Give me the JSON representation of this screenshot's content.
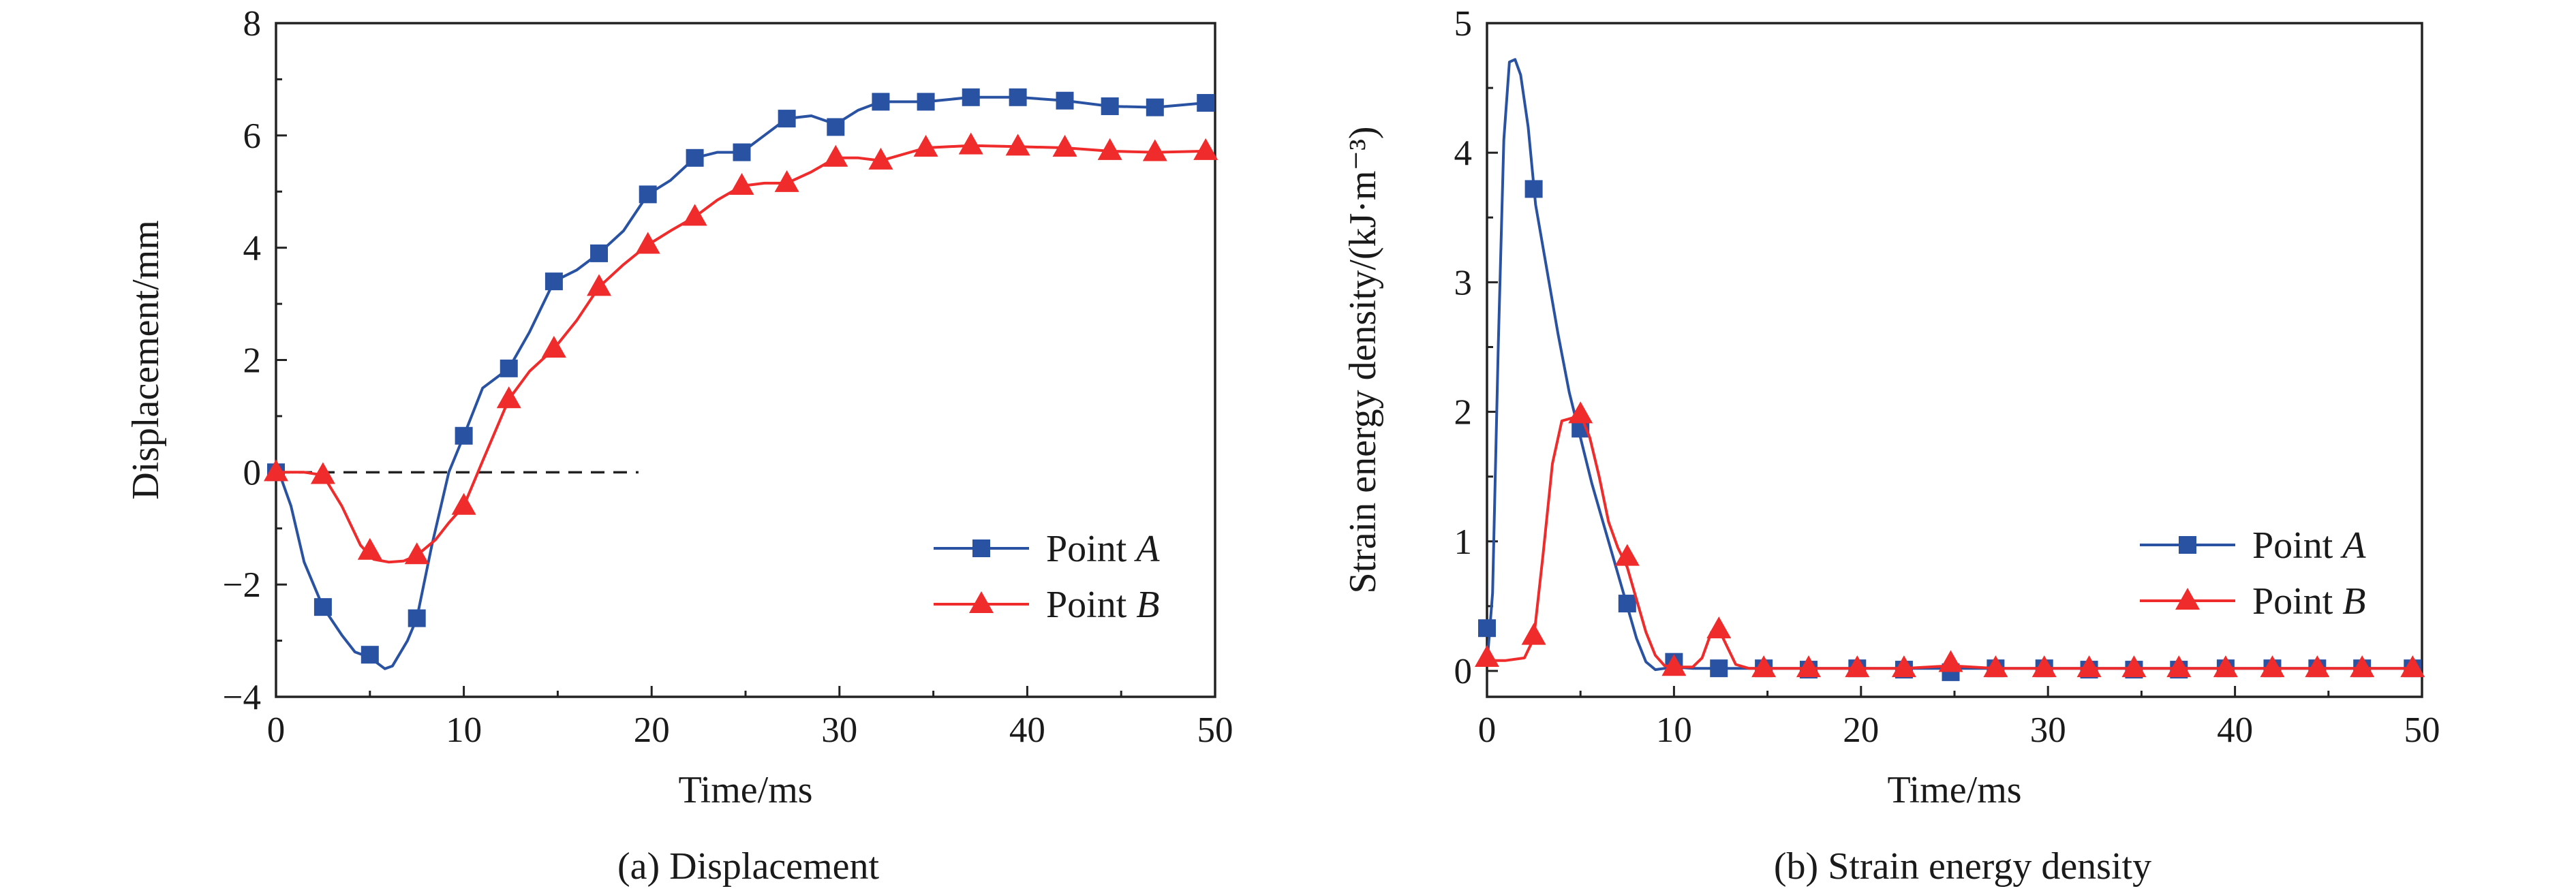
{
  "colors": {
    "point_a": "#2952a3",
    "point_b": "#ef2b2b",
    "axis": "#222222",
    "ref_line": "#222222"
  },
  "chart_data": [
    {
      "type": "line",
      "caption": "(a) Displacement",
      "xlabel": "Time/ms",
      "ylabel": "Displacement/mm",
      "xlim": [
        0,
        50
      ],
      "ylim": [
        -4,
        8
      ],
      "xticks": [
        0,
        10,
        20,
        30,
        40,
        50
      ],
      "yticks": [
        -4,
        -2,
        0,
        2,
        4,
        6,
        8
      ],
      "ytick_labels": [
        "−4",
        "−2",
        "0",
        "2",
        "4",
        "6",
        "8"
      ],
      "grid": false,
      "legend_position": "right-middle",
      "reference_line": {
        "y": 0,
        "x_from": 0,
        "x_to": 19.3,
        "style": "dashed"
      },
      "series": [
        {
          "name": "Point A",
          "name_prefix": "Point ",
          "name_italic": "A",
          "color": "#2952a3",
          "marker": "square",
          "x": [
            0,
            0.8,
            1.5,
            2.5,
            3.5,
            4.2,
            5,
            5.8,
            6.2,
            7,
            7.5,
            8.3,
            9.2,
            10,
            11,
            12.4,
            13.5,
            14.8,
            16,
            17.2,
            18.5,
            19.8,
            21,
            22.3,
            23.5,
            24.8,
            26,
            27.2,
            28.5,
            29.8,
            31,
            32.2,
            34.6,
            37,
            39.5,
            42,
            44.4,
            46.8,
            49.5
          ],
          "y": [
            0.15,
            -0.6,
            -1.6,
            -2.4,
            -2.9,
            -3.2,
            -3.3,
            -3.5,
            -3.45,
            -3.0,
            -2.6,
            -1.3,
            0.0,
            0.65,
            1.5,
            1.85,
            2.5,
            3.4,
            3.6,
            3.9,
            4.3,
            4.95,
            5.2,
            5.6,
            5.7,
            5.7,
            6.0,
            6.3,
            6.35,
            6.2,
            6.45,
            6.6,
            6.6,
            6.68,
            6.68,
            6.62,
            6.52,
            6.5,
            6.58
          ],
          "marker_x": [
            0,
            2.5,
            5,
            7.5,
            10,
            12.4,
            14.8,
            17.2,
            19.8,
            22.3,
            24.8,
            27.2,
            29.8,
            32.2,
            34.6,
            37,
            39.5,
            42,
            44.4,
            46.8,
            49.5
          ],
          "marker_y": [
            0,
            -2.4,
            -3.25,
            -2.6,
            0.65,
            1.85,
            3.4,
            3.9,
            4.95,
            5.6,
            5.7,
            6.3,
            6.15,
            6.6,
            6.6,
            6.68,
            6.68,
            6.62,
            6.52,
            6.5,
            6.58
          ]
        },
        {
          "name": "Point B",
          "name_prefix": "Point ",
          "name_italic": "B",
          "color": "#ef2b2b",
          "marker": "triangle",
          "x": [
            0,
            1.5,
            2.5,
            3.5,
            4.5,
            5.2,
            6,
            6.8,
            7.5,
            8.5,
            9.2,
            10,
            11,
            12.4,
            13.5,
            14.8,
            16,
            17.2,
            18.5,
            19.8,
            21,
            22.3,
            23.5,
            24.8,
            26,
            27.2,
            28.5,
            29.8,
            31,
            32.2,
            34.6,
            37,
            39.5,
            42,
            44.4,
            46.8,
            49.5
          ],
          "y": [
            0,
            0,
            -0.05,
            -0.6,
            -1.3,
            -1.55,
            -1.6,
            -1.58,
            -1.48,
            -1.2,
            -0.9,
            -0.6,
            0.2,
            1.3,
            1.8,
            2.2,
            2.7,
            3.3,
            3.7,
            4.05,
            4.3,
            4.55,
            4.85,
            5.1,
            5.15,
            5.15,
            5.35,
            5.6,
            5.6,
            5.55,
            5.78,
            5.82,
            5.8,
            5.78,
            5.72,
            5.7,
            5.72
          ],
          "marker_x": [
            0,
            2.5,
            5,
            7.5,
            10,
            12.4,
            14.8,
            17.2,
            19.8,
            22.3,
            24.8,
            27.2,
            29.8,
            32.2,
            34.6,
            37,
            39.5,
            42,
            44.4,
            46.8,
            49.5
          ],
          "marker_y": [
            0,
            -0.05,
            -1.4,
            -1.48,
            -0.6,
            1.3,
            2.2,
            3.3,
            4.05,
            4.55,
            5.1,
            5.15,
            5.6,
            5.55,
            5.78,
            5.82,
            5.8,
            5.78,
            5.72,
            5.7,
            5.72
          ]
        }
      ]
    },
    {
      "type": "line",
      "caption": "(b) Strain energy density",
      "xlabel": "Time/ms",
      "ylabel": "Strain energy density/(kJ·m⁻³)",
      "xlim": [
        0,
        50
      ],
      "ylim": [
        -0.2,
        5
      ],
      "xticks": [
        0,
        10,
        20,
        30,
        40,
        50
      ],
      "yticks": [
        0,
        1,
        2,
        3,
        4,
        5
      ],
      "ytick_labels": [
        "0",
        "1",
        "2",
        "3",
        "4",
        "5"
      ],
      "grid": false,
      "legend_position": "right-middle",
      "series": [
        {
          "name": "Point A",
          "name_prefix": "Point ",
          "name_italic": "A",
          "color": "#2952a3",
          "marker": "square",
          "x": [
            0,
            0.3,
            0.6,
            0.9,
            1.2,
            1.5,
            1.8,
            2.2,
            2.6,
            3.2,
            3.8,
            4.4,
            5,
            5.6,
            6.2,
            6.8,
            7.5,
            8,
            8.5,
            9,
            10,
            11,
            12.4,
            14.8,
            17.2,
            19.8,
            22.3,
            24.8,
            27.2,
            29.8,
            32.2,
            34.6,
            37,
            39.5,
            42,
            44.4,
            46.8,
            49.5
          ],
          "y": [
            0.05,
            0.6,
            2.5,
            4.1,
            4.7,
            4.72,
            4.6,
            4.2,
            3.6,
            3.1,
            2.6,
            2.15,
            1.8,
            1.45,
            1.15,
            0.85,
            0.5,
            0.25,
            0.07,
            0.01,
            0.03,
            0.02,
            0.02,
            0.02,
            0.02,
            0.02,
            0.02,
            0.02,
            0.02,
            0.02,
            0.02,
            0.02,
            0.02,
            0.02,
            0.02,
            0.02,
            0.02,
            0.02
          ],
          "marker_x": [
            0,
            2.5,
            5,
            7.5,
            10,
            12.4,
            14.8,
            17.2,
            19.8,
            22.3,
            24.8,
            27.2,
            29.8,
            32.2,
            34.6,
            37,
            39.5,
            42,
            44.4,
            46.8,
            49.5
          ],
          "marker_y": [
            0.33,
            3.72,
            1.87,
            0.52,
            0.07,
            0.02,
            0.02,
            0.01,
            0.02,
            0.01,
            -0.01,
            0.02,
            0.02,
            0.01,
            0.01,
            0.01,
            0.02,
            0.02,
            0.02,
            0.02,
            0.02
          ]
        },
        {
          "name": "Point B",
          "name_prefix": "Point ",
          "name_italic": "B",
          "color": "#ef2b2b",
          "marker": "triangle",
          "x": [
            0,
            1,
            2,
            2.5,
            3,
            3.5,
            4,
            4.5,
            5,
            5.5,
            6,
            6.5,
            7,
            7.5,
            8,
            8.5,
            9,
            9.5,
            10,
            11,
            11.5,
            12,
            12.4,
            12.8,
            13.3,
            14,
            14.8,
            17.2,
            19.8,
            22.3,
            24.8,
            27.2,
            29.8,
            32.2,
            34.6,
            37,
            39.5,
            42,
            44.4,
            46.8,
            49.5
          ],
          "y": [
            0.08,
            0.08,
            0.1,
            0.25,
            0.9,
            1.6,
            1.93,
            1.95,
            1.98,
            1.8,
            1.5,
            1.15,
            0.95,
            0.8,
            0.55,
            0.3,
            0.12,
            0.04,
            0.03,
            0.03,
            0.1,
            0.3,
            0.32,
            0.2,
            0.05,
            0.02,
            0.02,
            0.02,
            0.02,
            0.02,
            0.04,
            0.02,
            0.02,
            0.02,
            0.02,
            0.02,
            0.02,
            0.02,
            0.02,
            0.02,
            0.02
          ],
          "marker_x": [
            0,
            2.5,
            5,
            7.5,
            10,
            12.4,
            14.8,
            17.2,
            19.8,
            22.3,
            24.8,
            27.2,
            29.8,
            32.2,
            34.6,
            37,
            39.5,
            42,
            44.4,
            46.8,
            49.5
          ],
          "marker_y": [
            0.1,
            0.27,
            1.98,
            0.88,
            0.03,
            0.32,
            0.02,
            0.02,
            0.02,
            0.02,
            0.06,
            0.02,
            0.02,
            0.02,
            0.02,
            0.02,
            0.02,
            0.02,
            0.02,
            0.02,
            0.02
          ]
        }
      ]
    }
  ]
}
